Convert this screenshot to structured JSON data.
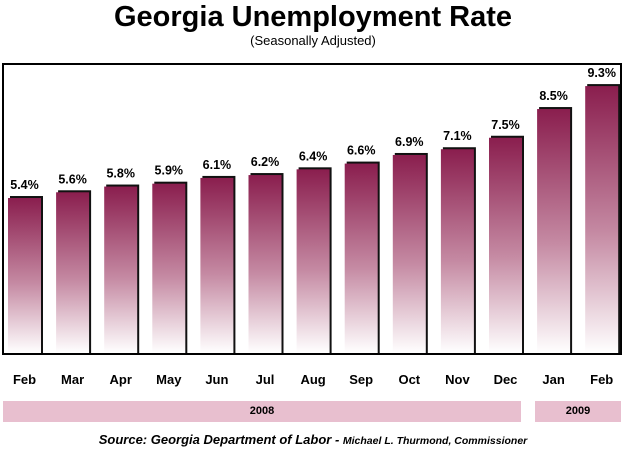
{
  "title": "Georgia Unemployment Rate",
  "subtitle": "(Seasonally Adjusted)",
  "year_labels": [
    "2008",
    "2009"
  ],
  "source": {
    "main": "Source: Georgia Department of Labor",
    "dash": " - ",
    "commissioner": "Michael L. Thurmond, Commissioner"
  },
  "colors": {
    "bar_top": "#8a1e4e",
    "bar_bottom": "#ffffff",
    "shadow": "#111111",
    "year_band": "#e8bfcf"
  },
  "chart_data": {
    "type": "bar",
    "title": "Georgia Unemployment Rate",
    "subtitle": "(Seasonally Adjusted)",
    "categories": [
      "Feb",
      "Mar",
      "Apr",
      "May",
      "Jun",
      "Jul",
      "Aug",
      "Sep",
      "Oct",
      "Nov",
      "Dec",
      "Jan",
      "Feb"
    ],
    "values": [
      5.4,
      5.6,
      5.8,
      5.9,
      6.1,
      6.2,
      6.4,
      6.6,
      6.9,
      7.1,
      7.5,
      8.5,
      9.3
    ],
    "value_labels": [
      "5.4%",
      "5.6%",
      "5.8%",
      "5.9%",
      "6.1%",
      "6.2%",
      "6.4%",
      "6.6%",
      "6.9%",
      "7.1%",
      "7.5%",
      "8.5%",
      "9.3%"
    ],
    "unit": "%",
    "xlabel": "",
    "ylabel": "",
    "ylim": [
      0,
      10
    ],
    "grid": false,
    "legend": "none"
  }
}
